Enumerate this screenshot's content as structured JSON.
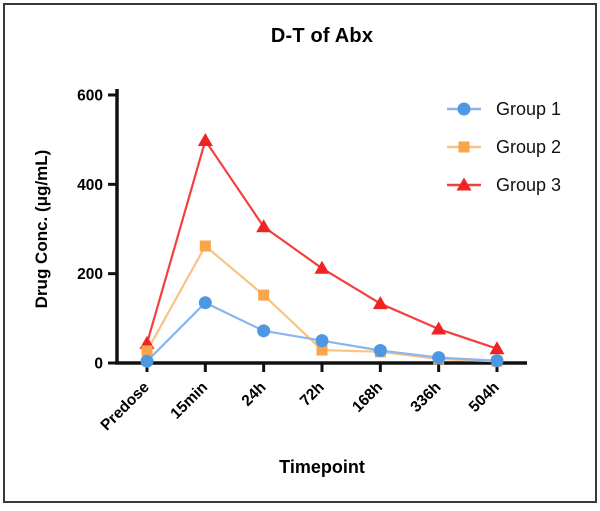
{
  "figure": {
    "border_color": "#3a3a3a",
    "background": "#ffffff",
    "axis_color": "#111111"
  },
  "chart_data": {
    "type": "line",
    "title": "D-T of Abx",
    "xlabel": "Timepoint",
    "ylabel": "Drug Conc. (μg/mL)",
    "categories": [
      "Predose",
      "15min",
      "24h",
      "72h",
      "168h",
      "336h",
      "504h"
    ],
    "ylim": [
      0,
      600
    ],
    "yticks": [
      0,
      200,
      400,
      600
    ],
    "grid": false,
    "legend_position": "top-right",
    "series": [
      {
        "name": "Group 1",
        "marker": "circle",
        "color": "#4D97E5",
        "line_color": "#8AB6EF",
        "values": [
          4,
          135,
          72,
          50,
          28,
          12,
          5
        ]
      },
      {
        "name": "Group 2",
        "marker": "square",
        "color": "#F8A54B",
        "line_color": "#FBC285",
        "values": [
          27,
          262,
          152,
          29,
          25,
          9,
          4
        ]
      },
      {
        "name": "Group 3",
        "marker": "triangle",
        "color": "#EE2424",
        "line_color": "#F2413D",
        "values": [
          44,
          498,
          305,
          212,
          133,
          76,
          32
        ]
      }
    ]
  }
}
